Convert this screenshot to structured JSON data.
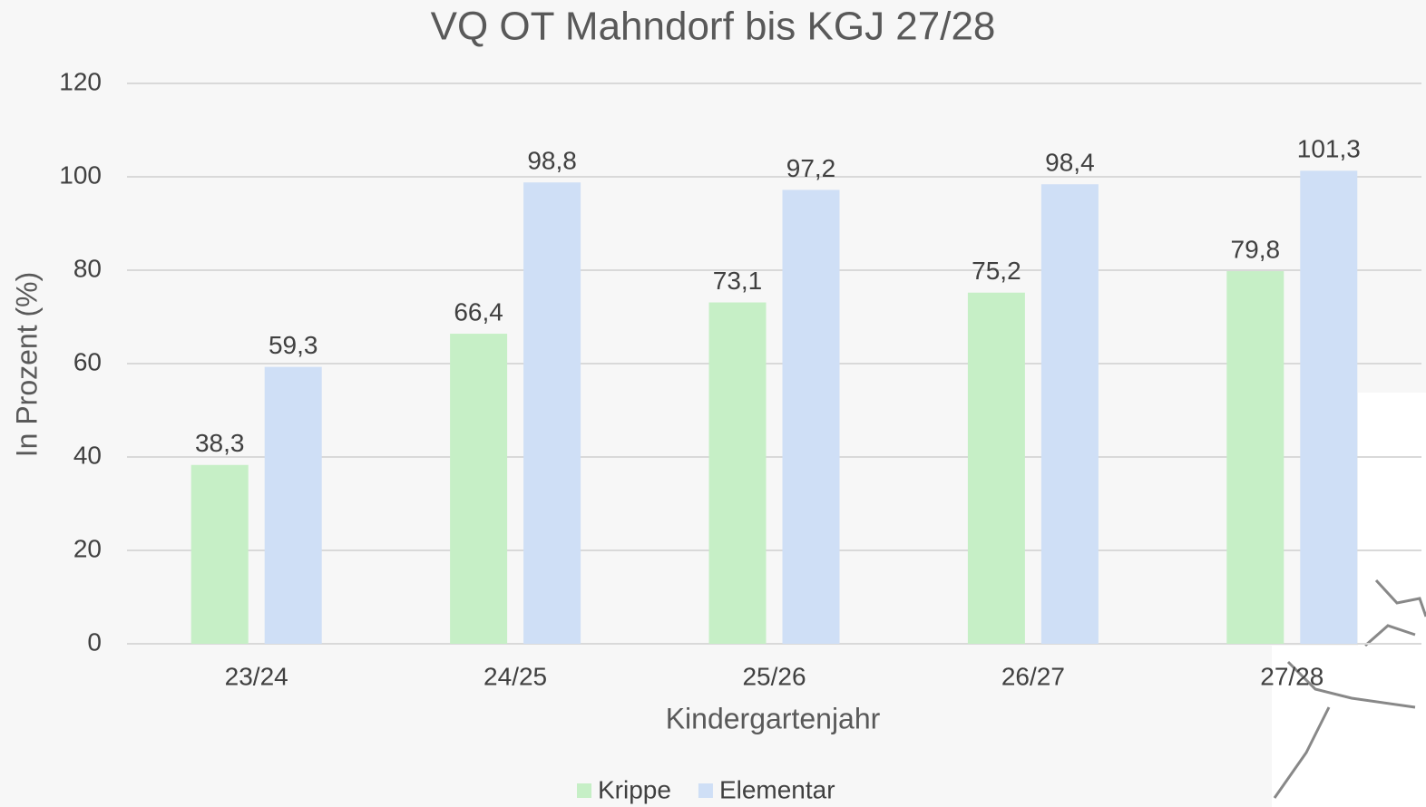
{
  "chart_data": {
    "type": "bar",
    "title": "VQ OT Mahndorf bis KGJ 27/28",
    "x_label": "Kindergartenjahr",
    "y_label": "In Prozent (%)",
    "categories": [
      "23/24",
      "24/25",
      "25/26",
      "26/27",
      "27/28"
    ],
    "series": [
      {
        "name": "Krippe",
        "color": "#c6efc6",
        "values": [
          38.3,
          66.4,
          73.1,
          75.2,
          79.8
        ],
        "value_labels": [
          "38,3",
          "66,4",
          "73,1",
          "75,2",
          "79,8"
        ]
      },
      {
        "name": "Elementar",
        "color": "#cfdff6",
        "values": [
          59.3,
          98.8,
          97.2,
          98.4,
          101.3
        ],
        "value_labels": [
          "59,3",
          "98,8",
          "97,2",
          "98,4",
          "101,3"
        ]
      }
    ],
    "ylim": [
      0,
      120
    ],
    "yticks": [
      0,
      20,
      40,
      60,
      80,
      100,
      120
    ],
    "grid": true,
    "legend": "bottom"
  }
}
